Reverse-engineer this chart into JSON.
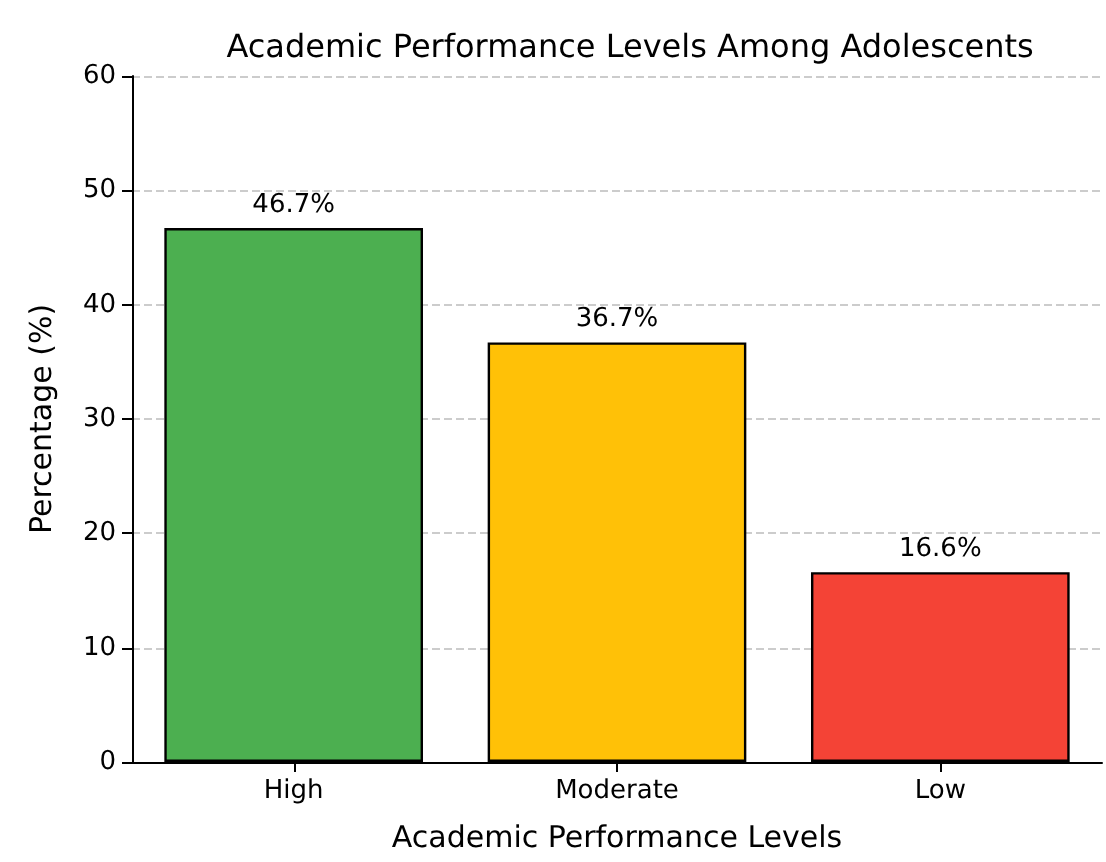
{
  "chart_data": {
    "type": "bar",
    "title": "Academic Performance Levels Among Adolescents",
    "xlabel": "Academic Performance Levels",
    "ylabel": "Percentage (%)",
    "categories": [
      "High",
      "Moderate",
      "Low"
    ],
    "values": [
      46.7,
      36.7,
      16.6
    ],
    "colors": [
      "#4caf50",
      "#ffc107",
      "#f44336"
    ],
    "value_labels": [
      "46.7%",
      "36.7%",
      "16.6%"
    ],
    "ylim": [
      0,
      60
    ],
    "yticks": [
      0,
      10,
      20,
      30,
      40,
      50,
      60
    ],
    "grid": "y"
  }
}
